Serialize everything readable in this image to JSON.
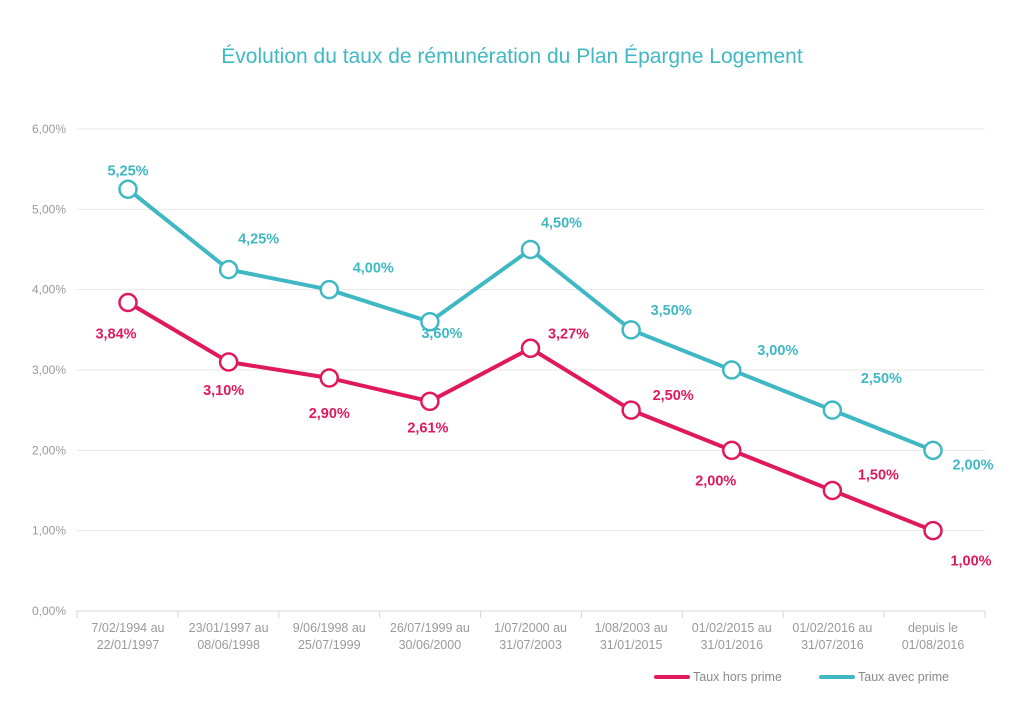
{
  "chart_data": {
    "type": "line",
    "title": "Évolution du taux de rémunération du Plan Épargne Logement",
    "xlabel": "",
    "ylabel": "",
    "ylim": [
      0,
      6
    ],
    "yticks": [
      0,
      1,
      2,
      3,
      4,
      5,
      6
    ],
    "ytick_labels": [
      "0,00%",
      "1,00%",
      "2,00%",
      "3,00%",
      "4,00%",
      "5,00%",
      "6,00%"
    ],
    "grid": true,
    "legend_position": "bottom-right",
    "categories": [
      [
        "7/02/1994 au",
        "22/01/1997"
      ],
      [
        "23/01/1997 au",
        "08/06/1998"
      ],
      [
        "9/06/1998 au",
        "25/07/1999"
      ],
      [
        "26/07/1999 au",
        "30/06/2000"
      ],
      [
        "1/07/2000 au",
        "31/07/2003"
      ],
      [
        "1/08/2003 au",
        "31/01/2015"
      ],
      [
        "01/02/2015 au",
        "31/01/2016"
      ],
      [
        "01/02/2016 au",
        "31/07/2016"
      ],
      [
        "depuis le",
        "01/08/2016"
      ]
    ],
    "series": [
      {
        "name": "Taux hors prime",
        "color": "#e0195d",
        "values": [
          3.84,
          3.1,
          2.9,
          2.61,
          3.27,
          2.5,
          2.0,
          1.5,
          1.0
        ],
        "labels": [
          "3,84%",
          "3,10%",
          "2,90%",
          "2,61%",
          "3,27%",
          "2,50%",
          "2,00%",
          "1,50%",
          "1,00%"
        ]
      },
      {
        "name": "Taux avec prime",
        "color": "#3fb8c4",
        "values": [
          5.25,
          4.25,
          4.0,
          3.6,
          4.5,
          3.5,
          3.0,
          2.5,
          2.0
        ],
        "labels": [
          "5,25%",
          "4,25%",
          "4,00%",
          "3,60%",
          "4,50%",
          "3,50%",
          "3,00%",
          "2,50%",
          "2,00%"
        ]
      }
    ]
  }
}
